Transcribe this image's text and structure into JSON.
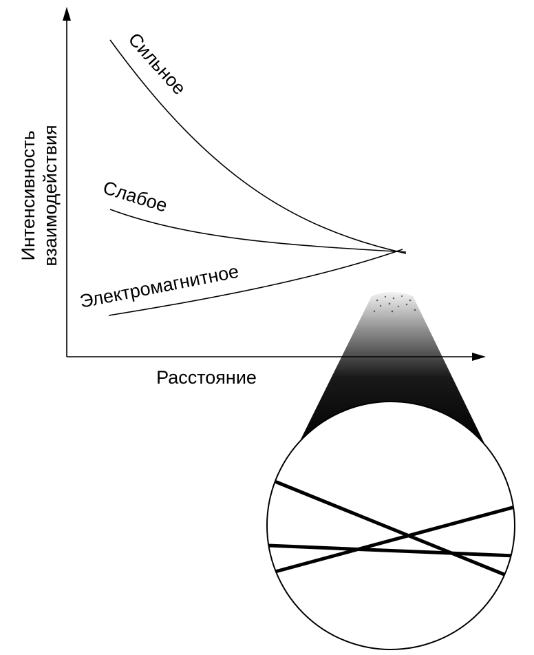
{
  "axes": {
    "y_label_line1": "Интенсивность",
    "y_label_line2": "взаимодействия",
    "x_label": "Расстояние"
  },
  "curves": {
    "strong": "Сильное",
    "weak": "Слабое",
    "electromagnetic": "Электромагнитное"
  },
  "colors": {
    "ink": "#000000",
    "background": "#ffffff"
  }
}
